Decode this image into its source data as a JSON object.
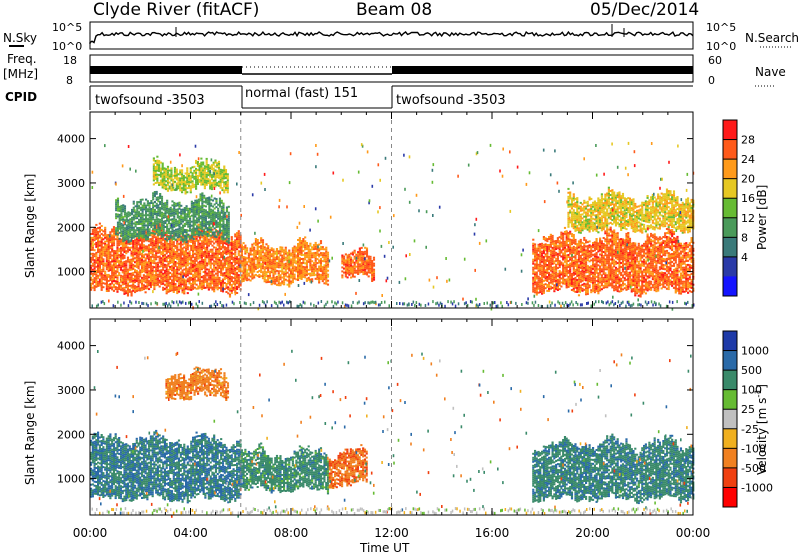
{
  "header": {
    "station": "Clyde River (fitACF)",
    "beam": "Beam 08",
    "date": "05/Dec/2014"
  },
  "panels": {
    "sky_label": "N.Sky",
    "search_label": "N.Search",
    "sky_ticks": [
      "10^5",
      "10^0"
    ],
    "search_ticks": [
      "10^5",
      "10^0"
    ],
    "freq_label": "Freq.",
    "freq_unit": "[MHz]",
    "freq_ticks": [
      "18",
      "8"
    ],
    "nave_label": "Nave",
    "nave_ticks": [
      "60",
      "0"
    ],
    "cpid_label": "CPID",
    "cpid_segments": [
      {
        "label": "twofsound -3503",
        "start_h": 0,
        "end_h": 6
      },
      {
        "label": "normal (fast) 151",
        "start_h": 6,
        "end_h": 12
      },
      {
        "label": "twofsound -3503",
        "start_h": 12,
        "end_h": 24
      }
    ]
  },
  "chart_data": [
    {
      "type": "heatmap",
      "name": "power",
      "ylabel": "Slant Range [km]",
      "xlabel": "Time UT",
      "xlim_hours": [
        0,
        24
      ],
      "ylim_km": [
        180,
        4600
      ],
      "x_ticks": [
        "00:00",
        "04:00",
        "08:00",
        "12:00",
        "16:00",
        "20:00",
        "00:00"
      ],
      "y_ticks": [
        1000,
        2000,
        3000,
        4000
      ],
      "colorbar_label": "Power [dB]",
      "colorbar_ticks": [
        "28",
        "24",
        "20",
        "16",
        "12",
        "8",
        "4"
      ],
      "colorbar_colors": [
        "#ff1a1a",
        "#ff5a1a",
        "#ff9a1a",
        "#e6c823",
        "#66bb33",
        "#4a9a5a",
        "#3a7a7a",
        "#2a3aa8",
        "#1414ff"
      ],
      "echo_regions": [
        {
          "t0": 0.0,
          "t1": 6.0,
          "r0": 500,
          "r1": 1800,
          "value_db": 26
        },
        {
          "t0": 6.0,
          "t1": 9.5,
          "r0": 700,
          "r1": 1500,
          "value_db": 24
        },
        {
          "t0": 10.0,
          "t1": 11.3,
          "r0": 800,
          "r1": 1300,
          "value_db": 26
        },
        {
          "t0": 17.6,
          "t1": 24.0,
          "r0": 500,
          "r1": 1700,
          "value_db": 26
        },
        {
          "t0": 1.0,
          "t1": 5.5,
          "r0": 1700,
          "r1": 2500,
          "value_db": 12
        },
        {
          "t0": 2.5,
          "t1": 5.5,
          "r0": 2800,
          "r1": 3300,
          "value_db": 18
        },
        {
          "t0": 19.0,
          "t1": 24.0,
          "r0": 1900,
          "r1": 2600,
          "value_db": 20
        }
      ]
    },
    {
      "type": "heatmap",
      "name": "velocity",
      "ylabel": "Slant Range [km]",
      "xlabel": "Time UT",
      "xlim_hours": [
        0,
        24
      ],
      "ylim_km": [
        180,
        4600
      ],
      "x_ticks": [
        "00:00",
        "04:00",
        "08:00",
        "12:00",
        "16:00",
        "20:00",
        "00:00"
      ],
      "y_ticks": [
        1000,
        2000,
        3000,
        4000
      ],
      "colorbar_label": "Velocity [m s-1]",
      "colorbar_ticks": [
        "1000",
        "500",
        "100",
        "25",
        "-25",
        "-100",
        "-500",
        "-1000"
      ],
      "colorbar_colors": [
        "#1e3aa8",
        "#2a6aa8",
        "#3a8a6a",
        "#66bb33",
        "#c0c0c0",
        "#f0b020",
        "#f08020",
        "#f04010",
        "#ff0000"
      ],
      "echo_regions": [
        {
          "t0": 0.0,
          "t1": 6.0,
          "r0": 500,
          "r1": 1800,
          "value_ms": 500
        },
        {
          "t0": 6.0,
          "t1": 9.5,
          "r0": 700,
          "r1": 1500,
          "value_ms": 300
        },
        {
          "t0": 9.5,
          "t1": 11.0,
          "r0": 800,
          "r1": 1500,
          "value_ms": -400
        },
        {
          "t0": 17.6,
          "t1": 24.0,
          "r0": 500,
          "r1": 1700,
          "value_ms": 400
        },
        {
          "t0": 3.0,
          "t1": 5.5,
          "r0": 2800,
          "r1": 3300,
          "value_ms": -300
        }
      ]
    }
  ]
}
